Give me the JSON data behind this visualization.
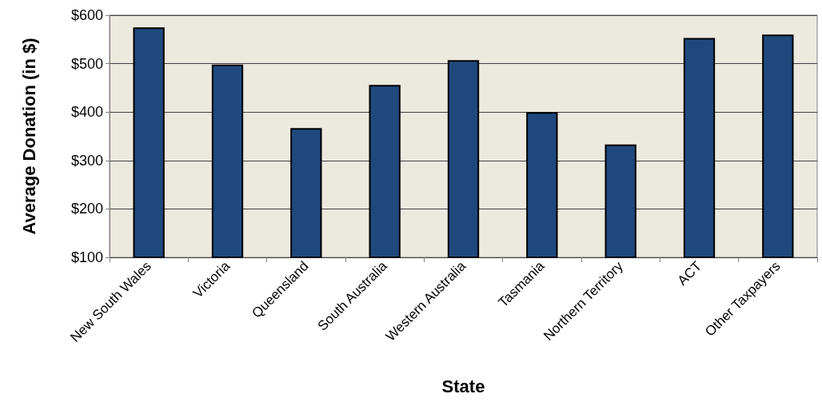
{
  "chart_data": {
    "type": "bar",
    "xlabel": "State",
    "ylabel": "Average Donation (in $)",
    "categories": [
      "New South Wales",
      "Victoria",
      "Queensland",
      "South Australia",
      "Western Australia",
      "Tasmania",
      "Northern Territory",
      "ACT",
      "Other Taxpayers"
    ],
    "values": [
      575,
      498,
      367,
      456,
      507,
      400,
      333,
      553,
      560
    ],
    "color": "#1f497d",
    "ylim": [
      100,
      600
    ],
    "yticks": [
      {
        "value": 100,
        "label": "$100"
      },
      {
        "value": 200,
        "label": "$200"
      },
      {
        "value": 300,
        "label": "$300"
      },
      {
        "value": 400,
        "label": "$400"
      },
      {
        "value": 500,
        "label": "$500"
      },
      {
        "value": 600,
        "label": "$600"
      }
    ],
    "grid": "y"
  }
}
